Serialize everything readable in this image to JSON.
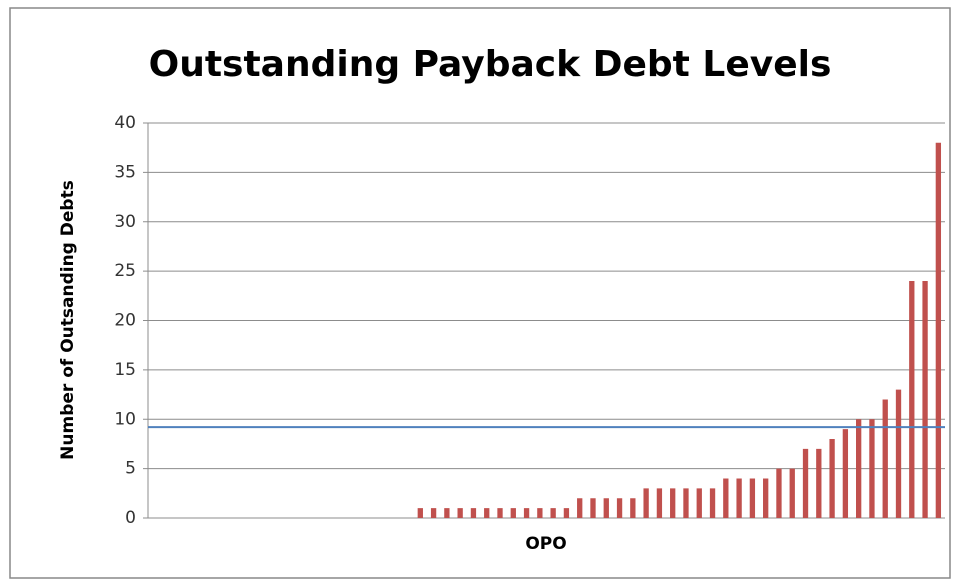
{
  "chart_data": {
    "type": "bar",
    "title": "Outstanding Payback Debt Levels",
    "x_label": "OPO",
    "y_label": "Number of Outsanding Debts",
    "categories": [
      null,
      null,
      null,
      null,
      null,
      null,
      null,
      null,
      null,
      null,
      null,
      null,
      null,
      null,
      null,
      null,
      null,
      null,
      null,
      null,
      null,
      null,
      null,
      null,
      null,
      null,
      null,
      null,
      null,
      null,
      null,
      null,
      null,
      null,
      null,
      null,
      null,
      null,
      null,
      null,
      null,
      null,
      null,
      null,
      null,
      null,
      null,
      null,
      null,
      null,
      null,
      null,
      null,
      null,
      null,
      null,
      null,
      null,
      null,
      null
    ],
    "values": [
      0,
      0,
      0,
      0,
      0,
      0,
      0,
      0,
      0,
      0,
      0,
      0,
      0,
      0,
      0,
      0,
      0,
      0,
      0,
      0,
      1,
      1,
      1,
      1,
      1,
      1,
      1,
      1,
      1,
      1,
      1,
      1,
      2,
      2,
      2,
      2,
      2,
      3,
      3,
      3,
      3,
      3,
      3,
      4,
      4,
      4,
      4,
      5,
      5,
      7,
      7,
      8,
      9,
      10,
      10,
      12,
      13,
      24,
      24,
      38
    ],
    "color": "#c0504d",
    "reference_line": {
      "value": 9.2,
      "color": "#4f81bd"
    },
    "ylim": [
      0,
      40
    ],
    "yticks": [
      0,
      5,
      10,
      15,
      20,
      25,
      30,
      35,
      40
    ],
    "grid": true
  }
}
